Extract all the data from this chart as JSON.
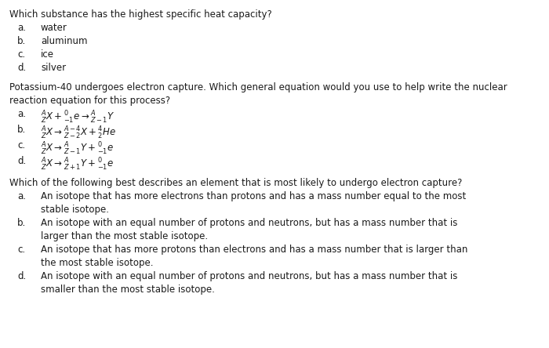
{
  "background_color": "#ffffff",
  "text_color": "#1a1a1a",
  "figsize": [
    7.0,
    4.44
  ],
  "dpi": 100,
  "font_size": 8.5,
  "q1": {
    "question": "Which substance has the highest specific heat capacity?",
    "choices": [
      [
        "a.",
        "water"
      ],
      [
        "b.",
        "aluminum"
      ],
      [
        "c.",
        "ice"
      ],
      [
        "d.",
        "silver"
      ]
    ]
  },
  "q2": {
    "line1": "Potassium-40 undergoes electron capture. Which general equation would you use to help write the nuclear",
    "line2": "reaction equation for this process?",
    "choices": [
      [
        "a.",
        "$^{A}_{Z}X+^{0}_{-1}e \\rightarrow ^{A}_{Z-1}Y$"
      ],
      [
        "b.",
        "$^{A}_{Z}X \\rightarrow ^{A-4}_{Z-2}X+^{4}_{2}He$"
      ],
      [
        "c.",
        "$^{A}_{Z}X \\rightarrow ^{A}_{Z-1}Y+^{0}_{-1}e$"
      ],
      [
        "d.",
        "$^{A}_{Z}X \\rightarrow ^{A}_{Z+1}Y+^{0}_{-1}e$"
      ]
    ]
  },
  "q3": {
    "question": "Which of the following best describes an element that is most likely to undergo electron capture?",
    "choices": [
      [
        "a.",
        "An isotope that has more electrons than protons and has a mass number equal to the most",
        "stable isotope."
      ],
      [
        "b.",
        "An isotope with an equal number of protons and neutrons, but has a mass number that is",
        "larger than the most stable isotope."
      ],
      [
        "c.",
        "An isotope that has more protons than electrons and has a mass number that is larger than",
        "the most stable isotope."
      ],
      [
        "d.",
        "An isotope with an equal number of protons and neutrons, but has a mass number that is",
        "smaller than the most stable isotope."
      ]
    ]
  }
}
